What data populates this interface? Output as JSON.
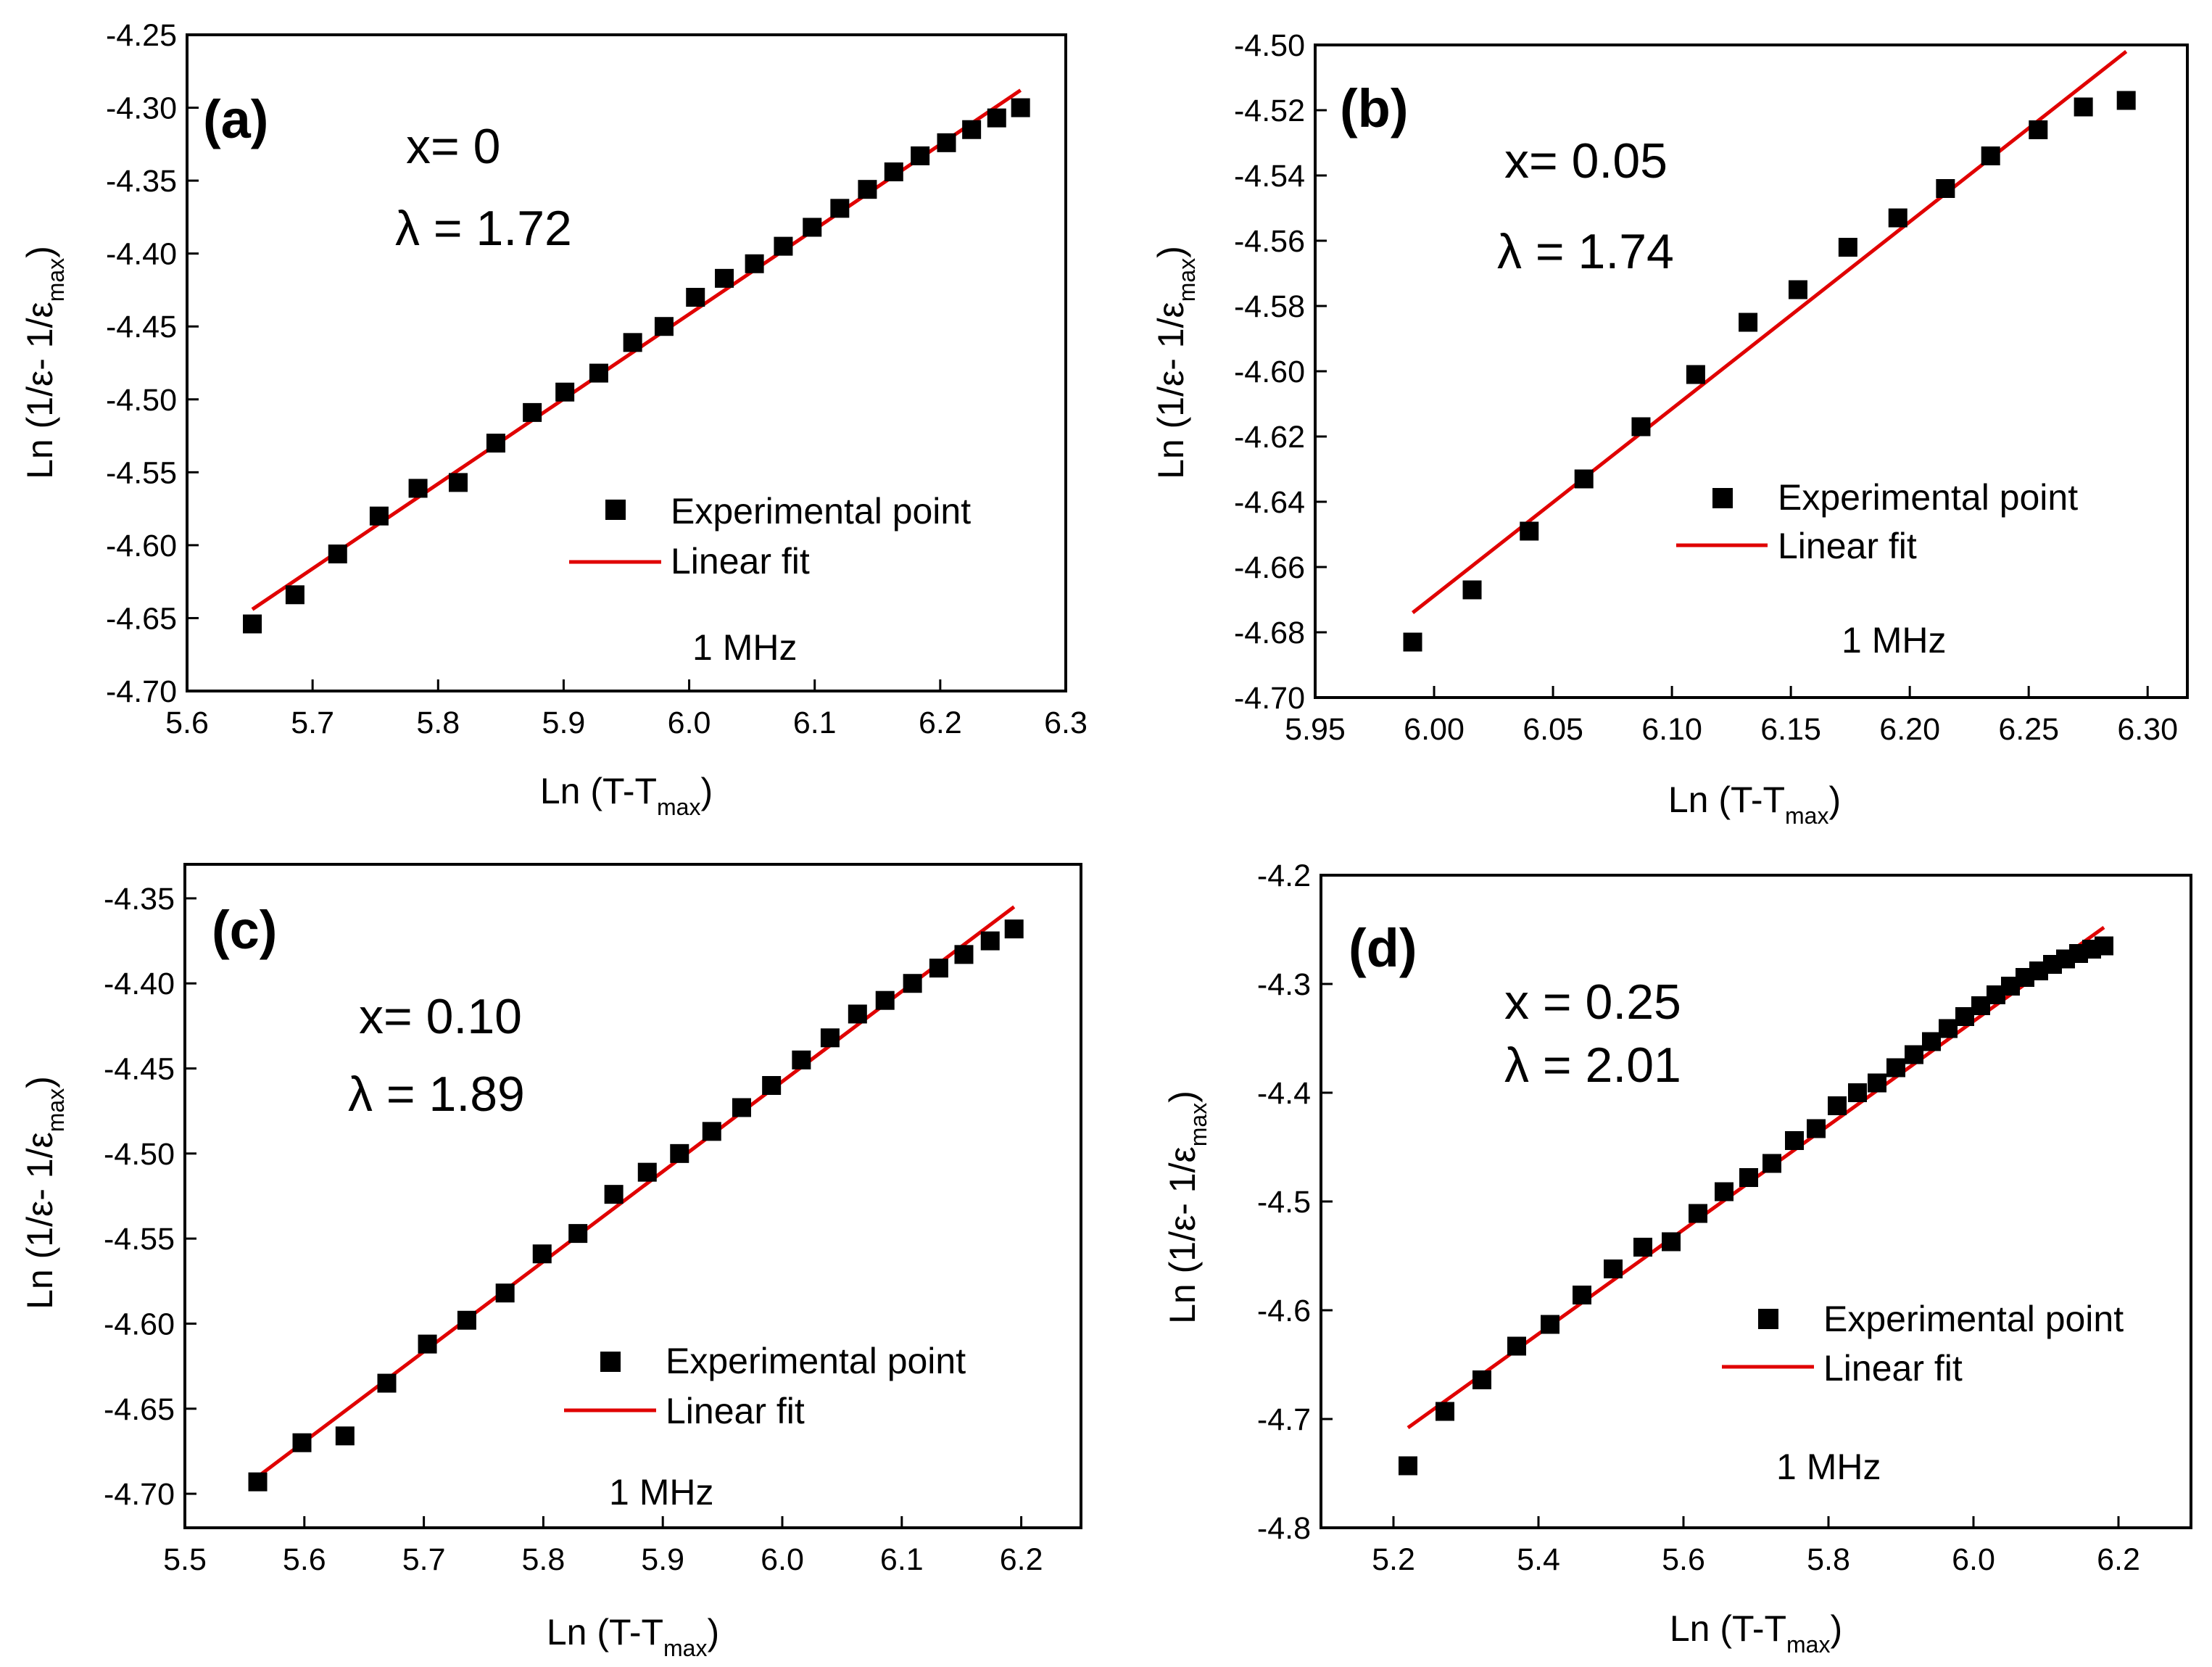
{
  "colors": {
    "marker": "#000000",
    "fit_line": "#e00000",
    "axes": "#000000",
    "background": "#ffffff"
  },
  "chart_data": [
    {
      "type": "scatter",
      "panel_label": "(a)",
      "annotations": {
        "composition": "x= 0",
        "lambda": "λ = 1.72"
      },
      "frequency": "1 MHz",
      "legend": {
        "points": "Experimental point",
        "fit": "Linear fit",
        "position": "lower-right"
      },
      "xlabel": {
        "main": "Ln (T-T",
        "sub": "max",
        "close": ")"
      },
      "ylabel": {
        "main": "Ln (1/ε- 1/ε",
        "sub": "max",
        "close": ")"
      },
      "xlim": [
        5.6,
        6.3
      ],
      "ylim": [
        -4.7,
        -4.25
      ],
      "xticks": [
        "5.6",
        "5.7",
        "5.8",
        "5.9",
        "6.0",
        "6.1",
        "6.2",
        "6.3"
      ],
      "yticks": [
        "-4.25",
        "-4.30",
        "-4.35",
        "-4.40",
        "-4.45",
        "-4.50",
        "-4.55",
        "-4.60",
        "-4.65",
        "-4.70"
      ],
      "series": [
        {
          "name": "Experimental point",
          "x": [
            5.652,
            5.686,
            5.72,
            5.753,
            5.784,
            5.816,
            5.846,
            5.875,
            5.901,
            5.928,
            5.955,
            5.98,
            6.005,
            6.028,
            6.052,
            6.075,
            6.098,
            6.12,
            6.142,
            6.163,
            6.184,
            6.205,
            6.225,
            6.245,
            6.264
          ],
          "y": [
            -4.654,
            -4.634,
            -4.606,
            -4.58,
            -4.561,
            -4.557,
            -4.53,
            -4.509,
            -4.495,
            -4.482,
            -4.461,
            -4.45,
            -4.43,
            -4.417,
            -4.407,
            -4.395,
            -4.382,
            -4.369,
            -4.356,
            -4.344,
            -4.333,
            -4.324,
            -4.315,
            -4.307,
            -4.3
          ]
        },
        {
          "name": "Linear fit",
          "x": [
            5.652,
            6.264
          ],
          "y": [
            -4.644,
            -4.288
          ]
        }
      ]
    },
    {
      "type": "scatter",
      "panel_label": "(b)",
      "annotations": {
        "composition": "x= 0.05",
        "lambda": "λ = 1.74"
      },
      "frequency": "1 MHz",
      "legend": {
        "points": "Experimental point",
        "fit": "Linear fit",
        "position": "lower-right"
      },
      "xlabel": {
        "main": "Ln (T-T",
        "sub": "max",
        "close": ")"
      },
      "ylabel": {
        "main": "Ln (1/ε- 1/ε",
        "sub": "max",
        "close": ")"
      },
      "xlim": [
        5.95,
        6.3167
      ],
      "ylim": [
        -4.7,
        -4.5
      ],
      "xticks": [
        "5.95",
        "6.00",
        "6.05",
        "6.10",
        "6.15",
        "6.20",
        "6.25",
        "6.30"
      ],
      "yticks": [
        "-4.50",
        "-4.52",
        "-4.54",
        "-4.56",
        "-4.58",
        "-4.60",
        "-4.62",
        "-4.64",
        "-4.66",
        "-4.68",
        "-4.70"
      ],
      "series": [
        {
          "name": "Experimental point",
          "x": [
            5.991,
            6.016,
            6.04,
            6.063,
            6.087,
            6.11,
            6.132,
            6.153,
            6.174,
            6.195,
            6.215,
            6.234,
            6.254,
            6.273,
            6.291
          ],
          "y": [
            -4.683,
            -4.667,
            -4.649,
            -4.633,
            -4.617,
            -4.601,
            -4.585,
            -4.575,
            -4.562,
            -4.553,
            -4.544,
            -4.534,
            -4.526,
            -4.519,
            -4.517
          ]
        },
        {
          "name": "Linear fit",
          "x": [
            5.991,
            6.291
          ],
          "y": [
            -4.674,
            -4.502
          ]
        }
      ]
    },
    {
      "type": "scatter",
      "panel_label": "(c)",
      "annotations": {
        "composition": "x= 0.10",
        "lambda": "λ = 1.89"
      },
      "frequency": "1 MHz",
      "legend": {
        "points": "Experimental point",
        "fit": "Linear fit",
        "position": "lower-right"
      },
      "xlabel": {
        "main": "Ln (T-T",
        "sub": "max",
        "close": ")"
      },
      "ylabel": {
        "main": "Ln (1/ε- 1/ε",
        "sub": "max",
        "close": ")"
      },
      "xlim": [
        5.5,
        6.25
      ],
      "ylim": [
        -4.72,
        -4.33
      ],
      "xticks": [
        "5.5",
        "5.6",
        "5.7",
        "5.8",
        "5.9",
        "6.0",
        "6.1",
        "6.2"
      ],
      "yticks": [
        "-4.35",
        "-4.40",
        "-4.45",
        "-4.50",
        "-4.55",
        "-4.60",
        "-4.65",
        "-4.70"
      ],
      "series": [
        {
          "name": "Experimental point",
          "x": [
            5.561,
            5.598,
            5.634,
            5.669,
            5.703,
            5.736,
            5.768,
            5.799,
            5.829,
            5.859,
            5.887,
            5.914,
            5.941,
            5.966,
            5.991,
            6.016,
            6.04,
            6.063,
            6.086,
            6.109,
            6.131,
            6.152,
            6.174,
            6.194
          ],
          "y": [
            -4.693,
            -4.67,
            -4.666,
            -4.635,
            -4.612,
            -4.598,
            -4.582,
            -4.559,
            -4.547,
            -4.524,
            -4.511,
            -4.5,
            -4.487,
            -4.473,
            -4.46,
            -4.445,
            -4.432,
            -4.418,
            -4.41,
            -4.4,
            -4.391,
            -4.383,
            -4.375,
            -4.368
          ]
        },
        {
          "name": "Linear fit",
          "x": [
            5.561,
            6.194
          ],
          "y": [
            -4.69,
            -4.355
          ]
        }
      ]
    },
    {
      "type": "scatter",
      "panel_label": "(d)",
      "annotations": {
        "composition": "x = 0.25",
        "lambda": "λ = 2.01"
      },
      "frequency": "1 MHz",
      "legend": {
        "points": "Experimental point",
        "fit": "Linear fit",
        "position": "lower-right"
      },
      "xlabel": {
        "main": "Ln (T-T",
        "sub": "max",
        "close": ")"
      },
      "ylabel": {
        "main": "Ln (1/ε- 1/ε",
        "sub": "max",
        "close": ")"
      },
      "xlim": [
        5.1,
        6.3
      ],
      "ylim": [
        -4.8,
        -4.2
      ],
      "xticks": [
        "5.2",
        "5.4",
        "5.6",
        "5.8",
        "6.0",
        "6.2"
      ],
      "yticks": [
        "-4.2",
        "-4.3",
        "-4.4",
        "-4.5",
        "-4.6",
        "-4.7",
        "-4.8"
      ],
      "series": [
        {
          "name": "Experimental point",
          "x": [
            5.22,
            5.271,
            5.322,
            5.37,
            5.416,
            5.46,
            5.503,
            5.544,
            5.583,
            5.62,
            5.656,
            5.69,
            5.722,
            5.753,
            5.783,
            5.812,
            5.84,
            5.867,
            5.893,
            5.918,
            5.942,
            5.965,
            5.988,
            6.01,
            6.031,
            6.051,
            6.071,
            6.09,
            6.109,
            6.127,
            6.145,
            6.163,
            6.18
          ],
          "y": [
            -4.743,
            -4.693,
            -4.664,
            -4.633,
            -4.613,
            -4.586,
            -4.562,
            -4.542,
            -4.537,
            -4.511,
            -4.491,
            -4.478,
            -4.465,
            -4.444,
            -4.433,
            -4.412,
            -4.4,
            -4.391,
            -4.377,
            -4.365,
            -4.353,
            -4.341,
            -4.33,
            -4.32,
            -4.31,
            -4.302,
            -4.294,
            -4.288,
            -4.282,
            -4.277,
            -4.272,
            -4.268,
            -4.265
          ]
        },
        {
          "name": "Linear fit",
          "x": [
            5.22,
            6.18
          ],
          "y": [
            -4.708,
            -4.248
          ]
        }
      ]
    }
  ]
}
